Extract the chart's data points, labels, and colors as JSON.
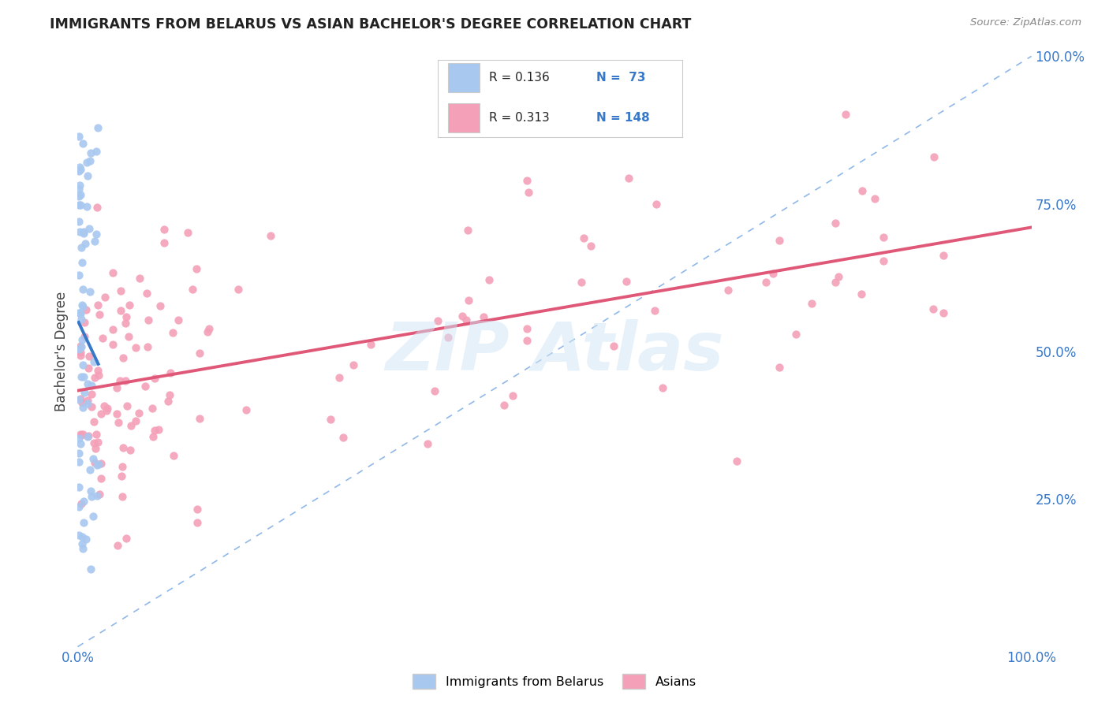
{
  "title": "IMMIGRANTS FROM BELARUS VS ASIAN BACHELOR'S DEGREE CORRELATION CHART",
  "source": "Source: ZipAtlas.com",
  "ylabel": "Bachelor's Degree",
  "xlim": [
    0,
    1.0
  ],
  "ylim": [
    0,
    1.0
  ],
  "xticklabels": [
    "0.0%",
    "",
    "",
    "",
    "100.0%"
  ],
  "yticklabels_right": [
    "",
    "25.0%",
    "50.0%",
    "75.0%",
    "100.0%"
  ],
  "legend_R1": "R = 0.136",
  "legend_N1": "N =  73",
  "legend_R2": "R = 0.313",
  "legend_N2": "N = 148",
  "color_blue": "#a8c8f0",
  "color_pink": "#f4a0b8",
  "color_blue_line": "#3878c8",
  "color_pink_line": "#e05878",
  "color_diag": "#90b8e8",
  "color_text_blue": "#3878c8",
  "background_color": "#ffffff",
  "grid_color": "#d8d8d8",
  "watermark_color": "#d0e4f4",
  "watermark_alpha": 0.5,
  "legend_label_1": "Immigrants from Belarus",
  "legend_label_2": "Asians"
}
